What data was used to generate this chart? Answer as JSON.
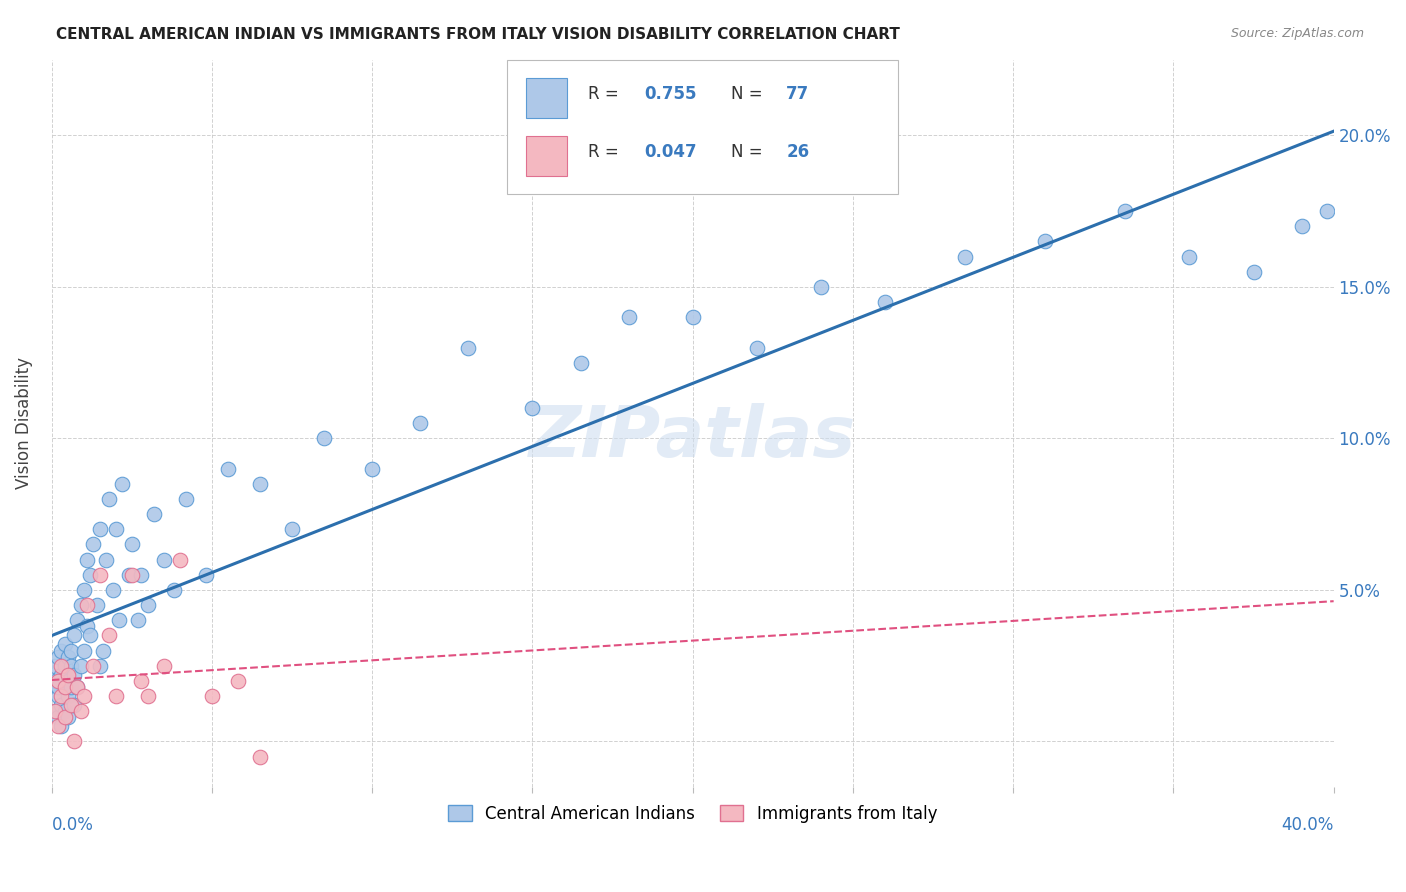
{
  "title": "CENTRAL AMERICAN INDIAN VS IMMIGRANTS FROM ITALY VISION DISABILITY CORRELATION CHART",
  "source": "Source: ZipAtlas.com",
  "ylabel": "Vision Disability",
  "xlim": [
    0,
    0.4
  ],
  "ylim": [
    -0.015,
    0.225
  ],
  "yticks": [
    0.0,
    0.05,
    0.1,
    0.15,
    0.2
  ],
  "ytick_labels": [
    "",
    "5.0%",
    "10.0%",
    "15.0%",
    "20.0%"
  ],
  "xticks": [
    0.0,
    0.05,
    0.1,
    0.15,
    0.2,
    0.25,
    0.3,
    0.35,
    0.4
  ],
  "legend1_r": "0.755",
  "legend1_n": "77",
  "legend2_r": "0.047",
  "legend2_n": "26",
  "blue_color": "#aec8e8",
  "blue_edge": "#5b9bd5",
  "pink_color": "#f4b8c1",
  "pink_edge": "#e07090",
  "blue_line_color": "#2c6fad",
  "pink_line_color": "#e05080",
  "watermark": "ZIPatlas",
  "blue_x": [
    0.001,
    0.001,
    0.001,
    0.002,
    0.002,
    0.002,
    0.002,
    0.003,
    0.003,
    0.003,
    0.003,
    0.004,
    0.004,
    0.004,
    0.004,
    0.005,
    0.005,
    0.005,
    0.005,
    0.006,
    0.006,
    0.006,
    0.007,
    0.007,
    0.007,
    0.008,
    0.008,
    0.009,
    0.009,
    0.01,
    0.01,
    0.011,
    0.011,
    0.012,
    0.012,
    0.013,
    0.014,
    0.015,
    0.015,
    0.016,
    0.017,
    0.018,
    0.019,
    0.02,
    0.021,
    0.022,
    0.024,
    0.025,
    0.027,
    0.028,
    0.03,
    0.032,
    0.035,
    0.038,
    0.042,
    0.048,
    0.055,
    0.065,
    0.075,
    0.085,
    0.1,
    0.115,
    0.13,
    0.15,
    0.165,
    0.18,
    0.2,
    0.22,
    0.24,
    0.26,
    0.285,
    0.31,
    0.335,
    0.355,
    0.375,
    0.39,
    0.398
  ],
  "blue_y": [
    0.02,
    0.01,
    0.025,
    0.015,
    0.028,
    0.008,
    0.018,
    0.022,
    0.012,
    0.03,
    0.005,
    0.025,
    0.018,
    0.032,
    0.01,
    0.02,
    0.015,
    0.028,
    0.008,
    0.025,
    0.018,
    0.03,
    0.012,
    0.022,
    0.035,
    0.018,
    0.04,
    0.025,
    0.045,
    0.03,
    0.05,
    0.038,
    0.06,
    0.035,
    0.055,
    0.065,
    0.045,
    0.07,
    0.025,
    0.03,
    0.06,
    0.08,
    0.05,
    0.07,
    0.04,
    0.085,
    0.055,
    0.065,
    0.04,
    0.055,
    0.045,
    0.075,
    0.06,
    0.05,
    0.08,
    0.055,
    0.09,
    0.085,
    0.07,
    0.1,
    0.09,
    0.105,
    0.13,
    0.11,
    0.125,
    0.14,
    0.14,
    0.13,
    0.15,
    0.145,
    0.16,
    0.165,
    0.175,
    0.16,
    0.155,
    0.17,
    0.175
  ],
  "pink_x": [
    0.001,
    0.002,
    0.002,
    0.003,
    0.003,
    0.004,
    0.004,
    0.005,
    0.006,
    0.007,
    0.008,
    0.009,
    0.01,
    0.011,
    0.013,
    0.015,
    0.018,
    0.02,
    0.025,
    0.028,
    0.03,
    0.035,
    0.04,
    0.05,
    0.058,
    0.065
  ],
  "pink_y": [
    0.01,
    0.02,
    0.005,
    0.015,
    0.025,
    0.008,
    0.018,
    0.022,
    0.012,
    0.0,
    0.018,
    0.01,
    0.015,
    0.045,
    0.025,
    0.055,
    0.035,
    0.015,
    0.055,
    0.02,
    0.015,
    0.025,
    0.06,
    0.015,
    0.02,
    -0.005
  ]
}
